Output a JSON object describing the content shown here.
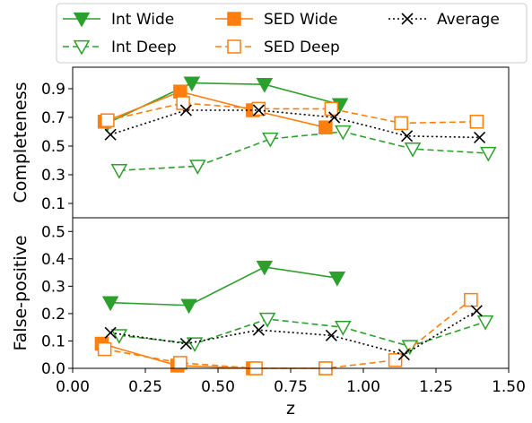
{
  "chart_data": [
    {
      "type": "line",
      "panel": "top",
      "ylabel": "Completeness",
      "ylim": [
        0.0,
        1.05
      ],
      "yticks": [
        0.1,
        0.3,
        0.5,
        0.7,
        0.9
      ],
      "ytick_labels": [
        "0.1",
        "0.3",
        "0.5",
        "0.7",
        "0.9"
      ],
      "series": [
        {
          "name": "Int Wide",
          "color": "#2ca02c",
          "style": "solid",
          "marker": "triangle-down-filled",
          "x": [
            0.12,
            0.41,
            0.66,
            0.92
          ],
          "y": [
            0.66,
            0.94,
            0.93,
            0.79
          ]
        },
        {
          "name": "Int Deep",
          "color": "#2ca02c",
          "style": "dashed",
          "marker": "triangle-down-open",
          "x": [
            0.16,
            0.43,
            0.68,
            0.93,
            1.17,
            1.43
          ],
          "y": [
            0.33,
            0.36,
            0.55,
            0.6,
            0.48,
            0.45
          ]
        },
        {
          "name": "SED Wide",
          "color": "#ff7f0e",
          "style": "solid",
          "marker": "square-filled",
          "x": [
            0.11,
            0.37,
            0.62,
            0.87
          ],
          "y": [
            0.67,
            0.88,
            0.75,
            0.63
          ]
        },
        {
          "name": "SED Deep",
          "color": "#ff7f0e",
          "style": "dashed",
          "marker": "square-open",
          "x": [
            0.12,
            0.38,
            0.64,
            0.89,
            1.13,
            1.39
          ],
          "y": [
            0.68,
            0.8,
            0.76,
            0.76,
            0.66,
            0.67
          ]
        },
        {
          "name": "Average",
          "color": "#000000",
          "style": "dotted",
          "marker": "x",
          "x": [
            0.13,
            0.39,
            0.64,
            0.9,
            1.15,
            1.4
          ],
          "y": [
            0.58,
            0.75,
            0.75,
            0.7,
            0.57,
            0.56
          ]
        }
      ]
    },
    {
      "type": "line",
      "panel": "bottom",
      "ylabel": "False-positive",
      "xlabel": "z",
      "xlim": [
        0.0,
        1.5
      ],
      "ylim": [
        0.0,
        0.55
      ],
      "xticks": [
        0.0,
        0.25,
        0.5,
        0.75,
        1.0,
        1.25,
        1.5
      ],
      "xtick_labels": [
        "0.00",
        "0.25",
        "0.50",
        "0.75",
        "1.00",
        "1.25",
        "1.50"
      ],
      "yticks": [
        0.0,
        0.1,
        0.2,
        0.3,
        0.4,
        0.5
      ],
      "ytick_labels": [
        "0.0",
        "0.1",
        "0.2",
        "0.3",
        "0.4",
        "0.5"
      ],
      "series": [
        {
          "name": "Int Wide",
          "color": "#2ca02c",
          "style": "solid",
          "marker": "triangle-down-filled",
          "x": [
            0.13,
            0.4,
            0.66,
            0.91
          ],
          "y": [
            0.24,
            0.23,
            0.37,
            0.33
          ]
        },
        {
          "name": "Int Deep",
          "color": "#2ca02c",
          "style": "dashed",
          "marker": "triangle-down-open",
          "x": [
            0.16,
            0.42,
            0.67,
            0.93,
            1.16,
            1.42
          ],
          "y": [
            0.12,
            0.09,
            0.18,
            0.15,
            0.08,
            0.17
          ]
        },
        {
          "name": "SED Wide",
          "color": "#ff7f0e",
          "style": "solid",
          "marker": "square-filled",
          "x": [
            0.1,
            0.36,
            0.62,
            0.87
          ],
          "y": [
            0.09,
            0.01,
            0.0,
            0.0
          ]
        },
        {
          "name": "SED Deep",
          "color": "#ff7f0e",
          "style": "dashed",
          "marker": "square-open",
          "x": [
            0.11,
            0.37,
            0.63,
            0.87,
            1.11,
            1.37
          ],
          "y": [
            0.07,
            0.02,
            0.0,
            0.0,
            0.03,
            0.25
          ]
        },
        {
          "name": "Average",
          "color": "#000000",
          "style": "dotted",
          "marker": "x",
          "x": [
            0.13,
            0.39,
            0.64,
            0.89,
            1.14,
            1.39
          ],
          "y": [
            0.13,
            0.09,
            0.14,
            0.12,
            0.05,
            0.21
          ]
        }
      ]
    }
  ],
  "legend": {
    "placement": "top",
    "ncol": 3,
    "entries": [
      "Int Wide",
      "Int Deep",
      "SED Wide",
      "SED Deep",
      "Average"
    ]
  }
}
